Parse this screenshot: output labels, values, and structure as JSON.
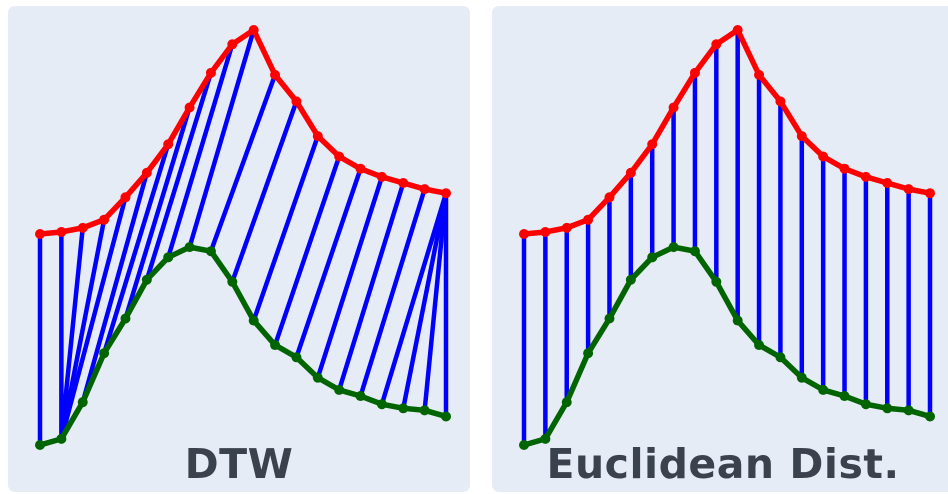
{
  "colors": {
    "background": "#e6ecf6",
    "series_a": "#ff0000",
    "series_b": "#006400",
    "alignment_lines": "#0000ff",
    "label_text": "#39424d"
  },
  "panels": [
    {
      "label": "DTW",
      "alignment": "dtw",
      "pairs": [
        [
          0,
          0
        ],
        [
          1,
          1
        ],
        [
          2,
          1
        ],
        [
          3,
          1
        ],
        [
          4,
          1
        ],
        [
          5,
          2
        ],
        [
          6,
          3
        ],
        [
          7,
          4
        ],
        [
          8,
          5
        ],
        [
          9,
          6
        ],
        [
          10,
          7
        ],
        [
          11,
          8
        ],
        [
          12,
          9
        ],
        [
          13,
          10
        ],
        [
          14,
          11
        ],
        [
          15,
          12
        ],
        [
          16,
          13
        ],
        [
          17,
          14
        ],
        [
          18,
          15
        ],
        [
          19,
          16
        ],
        [
          19,
          17
        ],
        [
          19,
          18
        ],
        [
          19,
          19
        ]
      ]
    },
    {
      "label": "Euclidean Dist.",
      "alignment": "euclidean",
      "pairs": [
        [
          0,
          0
        ],
        [
          1,
          1
        ],
        [
          2,
          2
        ],
        [
          3,
          3
        ],
        [
          4,
          4
        ],
        [
          5,
          5
        ],
        [
          6,
          6
        ],
        [
          7,
          7
        ],
        [
          8,
          8
        ],
        [
          9,
          9
        ],
        [
          10,
          10
        ],
        [
          11,
          11
        ],
        [
          12,
          12
        ],
        [
          13,
          13
        ],
        [
          14,
          14
        ],
        [
          15,
          15
        ],
        [
          16,
          16
        ],
        [
          17,
          17
        ],
        [
          18,
          18
        ],
        [
          19,
          19
        ]
      ]
    }
  ],
  "series_a": [
    0.0,
    0.01,
    0.03,
    0.07,
    0.18,
    0.3,
    0.44,
    0.62,
    0.79,
    0.93,
    1.0,
    0.78,
    0.65,
    0.48,
    0.38,
    0.32,
    0.28,
    0.25,
    0.22,
    0.2
  ],
  "series_b": [
    0.0,
    0.03,
    0.21,
    0.45,
    0.62,
    0.81,
    0.92,
    0.97,
    0.95,
    0.8,
    0.61,
    0.49,
    0.43,
    0.33,
    0.27,
    0.24,
    0.2,
    0.18,
    0.17,
    0.14
  ]
}
